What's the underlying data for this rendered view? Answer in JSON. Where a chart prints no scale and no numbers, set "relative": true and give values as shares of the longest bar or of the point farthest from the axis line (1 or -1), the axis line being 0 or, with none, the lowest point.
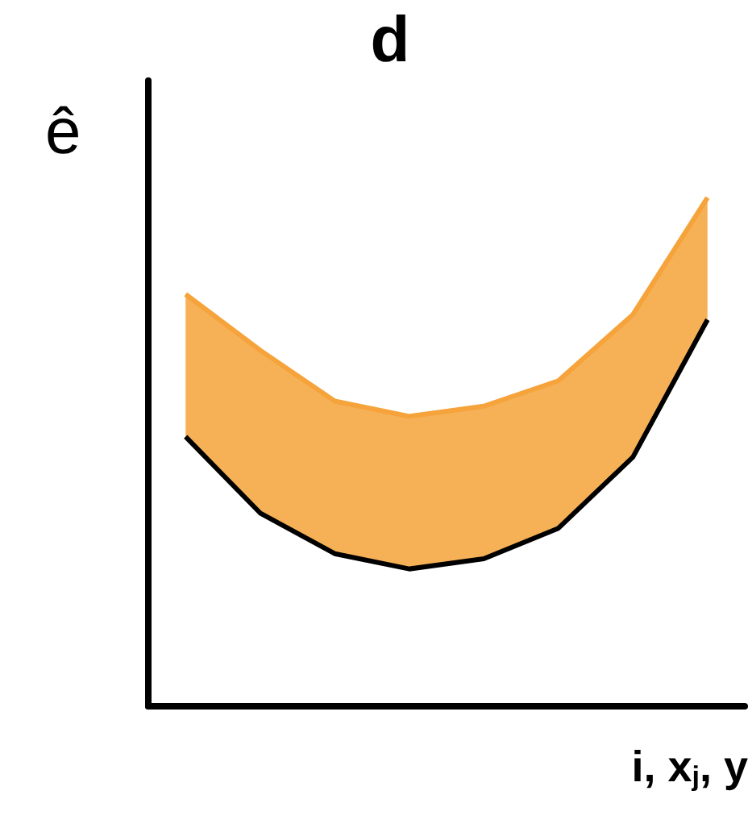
{
  "chart_data": {
    "type": "area",
    "title": "d",
    "ylabel": "ê",
    "xlabel": "i, x$_{j}$, y",
    "relative": true,
    "categories": [
      null,
      null,
      null,
      null,
      null,
      null,
      null,
      null
    ],
    "series": [
      {
        "type": "line",
        "color": "#000000",
        "values": [
          0.53,
          0.38,
          0.3,
          0.27,
          0.29,
          0.35,
          0.49,
          0.76
        ]
      },
      {
        "color": "#f5a33a",
        "values": [
          0.81,
          0.7,
          0.6,
          0.57,
          0.59,
          0.64,
          0.77,
          1
        ]
      }
    ]
  }
}
